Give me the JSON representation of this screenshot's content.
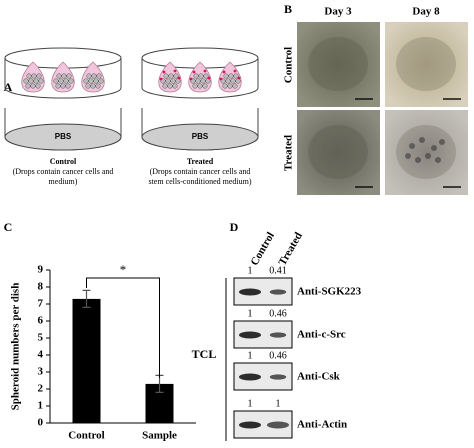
{
  "panel_a": {
    "label": "A",
    "dishes": [
      {
        "medium": "PBS",
        "title": "Control",
        "caption": [
          "(Drops contain cancer cells and",
          "medium)"
        ]
      },
      {
        "medium": "PBS",
        "title": "Treated",
        "caption": [
          "(Drops contain cancer cells and",
          "stem cells-conditioned medium)"
        ]
      }
    ]
  },
  "panel_b": {
    "label": "B",
    "columns": [
      "Day 3",
      "Day 8"
    ],
    "rows": [
      "Control",
      "Treated"
    ]
  },
  "panel_c": {
    "label": "C",
    "chart_data": {
      "type": "bar",
      "ylabel": "Spheroid numbers per dish",
      "categories": [
        "Control",
        "Sample"
      ],
      "values": [
        7.3,
        2.3
      ],
      "errors": [
        0.5,
        0.5
      ],
      "color": "#000000",
      "ylim": [
        0,
        9
      ],
      "yticks": [
        0,
        1,
        2,
        3,
        4,
        5,
        6,
        7,
        8,
        9
      ],
      "annotation": "*"
    }
  },
  "panel_d": {
    "label": "D",
    "lanes": [
      "Control",
      "Treated"
    ],
    "group": "TCL",
    "blots": [
      {
        "antibody": "Anti-SGK223",
        "ratios": [
          1,
          0.41
        ]
      },
      {
        "antibody": "Anti-c-Src",
        "ratios": [
          1,
          0.46
        ]
      },
      {
        "antibody": "Anti-Csk",
        "ratios": [
          1,
          0.46
        ]
      },
      {
        "antibody": "Anti-Actin",
        "ratios": [
          1,
          1
        ]
      }
    ]
  }
}
